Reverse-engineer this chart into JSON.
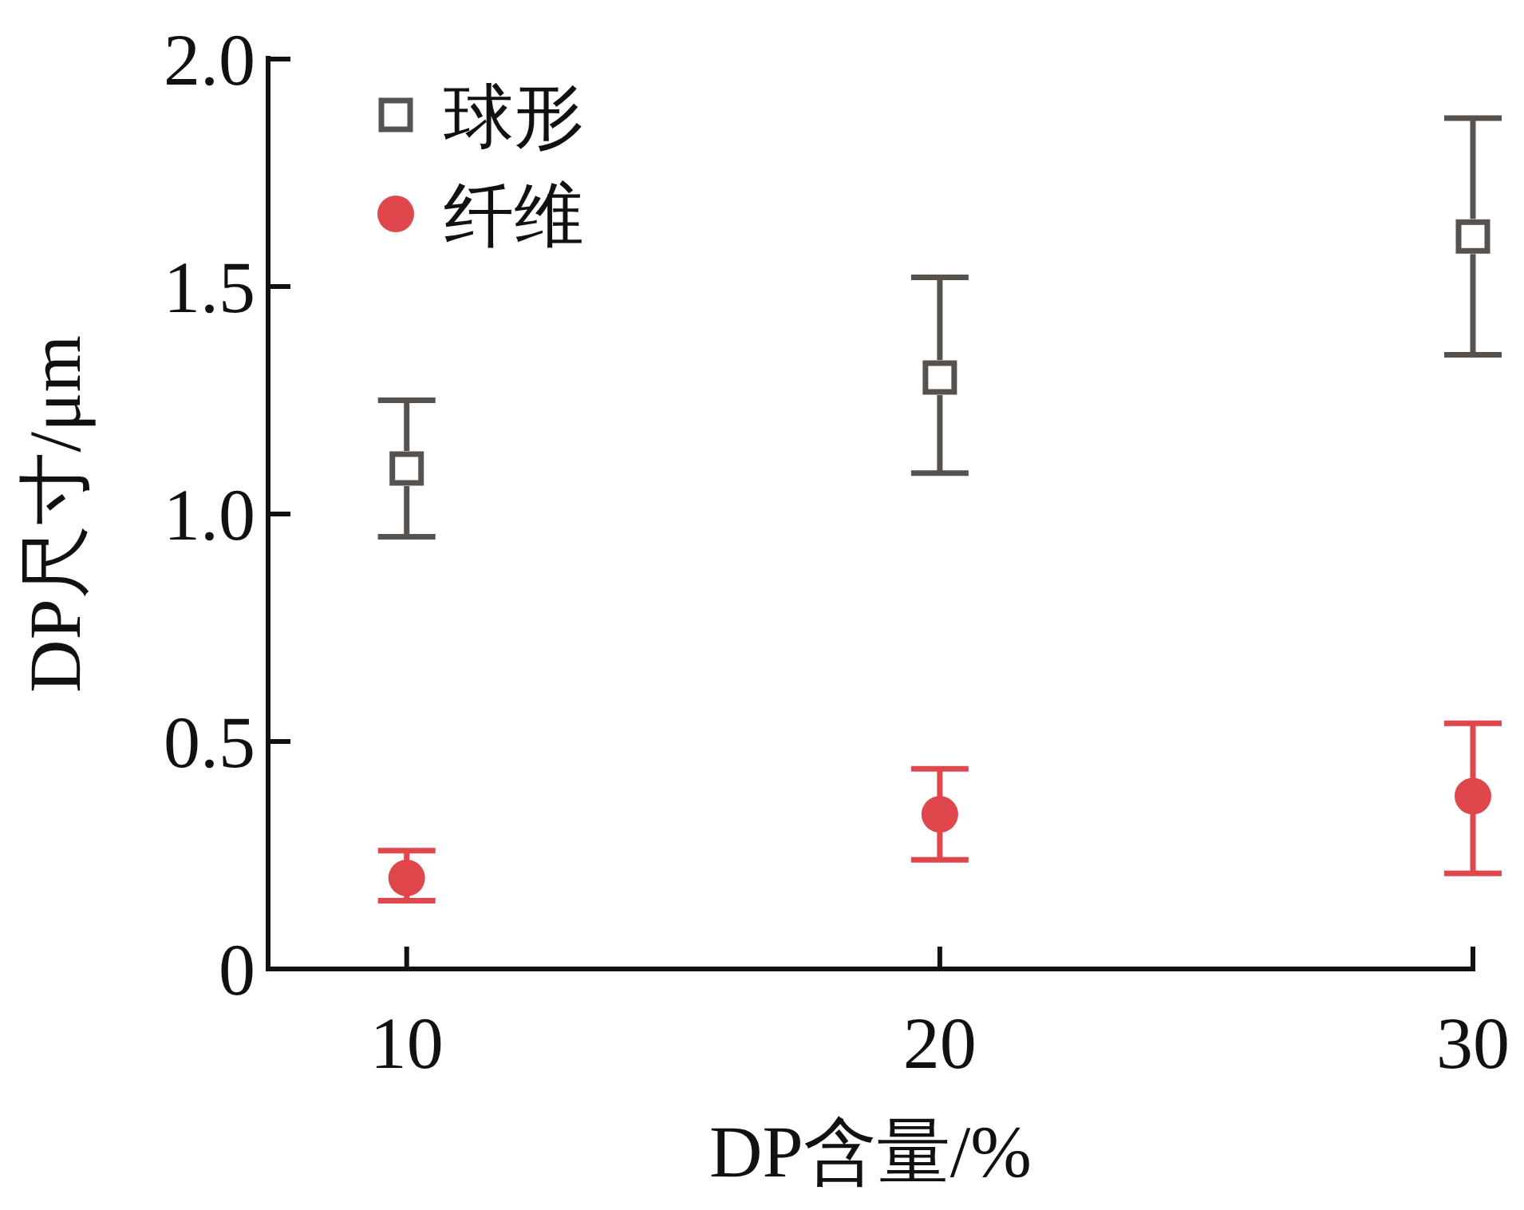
{
  "chart_data": {
    "type": "scatter",
    "xlabel": "DP含量/%",
    "ylabel": "DP尺寸/μm",
    "x": [
      10,
      20,
      30
    ],
    "series": [
      {
        "name": "球形",
        "color": "#57524e",
        "marker": "square",
        "values": [
          1.1,
          1.3,
          1.61
        ],
        "errors": [
          [
            0.95,
            1.25
          ],
          [
            1.09,
            1.52
          ],
          [
            1.35,
            1.87
          ]
        ]
      },
      {
        "name": "纤维",
        "color": "#e0474c",
        "marker": "circle",
        "values": [
          0.2,
          0.34,
          0.38
        ],
        "errors": [
          [
            0.15,
            0.26
          ],
          [
            0.24,
            0.44
          ],
          [
            0.21,
            0.54
          ]
        ]
      }
    ],
    "xlim": [
      7.4,
      30
    ],
    "xticks": [
      10,
      20,
      30
    ],
    "ylim": [
      0,
      2.0
    ],
    "yticks": [
      0,
      {
        "value": 0.5,
        "label": "0.5"
      },
      {
        "value": 1.0,
        "label": "1.0"
      },
      {
        "value": 1.5,
        "label": "1.5"
      },
      {
        "value": 2.0,
        "label": "2.0"
      }
    ],
    "legend": "top left",
    "grid": false
  }
}
